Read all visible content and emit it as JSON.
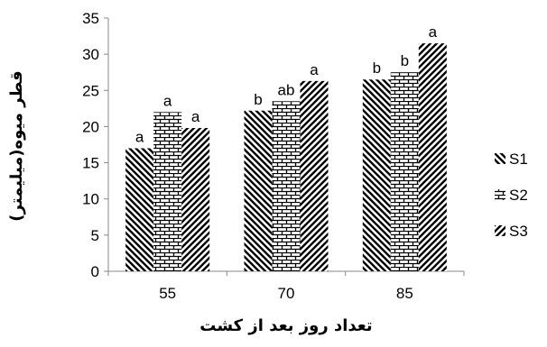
{
  "chart_data": {
    "type": "bar",
    "categories": [
      "55",
      "70",
      "85"
    ],
    "series": [
      {
        "name": "S1",
        "values": [
          17,
          22.2,
          26.5
        ],
        "letters": [
          "a",
          "b",
          "b"
        ],
        "pattern": "diag-back"
      },
      {
        "name": "S2",
        "values": [
          22,
          23.5,
          27.5
        ],
        "letters": [
          "a",
          "ab",
          "b"
        ],
        "pattern": "brick"
      },
      {
        "name": "S3",
        "values": [
          19.8,
          26.3,
          31.5
        ],
        "letters": [
          "a",
          "a",
          "a"
        ],
        "pattern": "diag-fwd"
      }
    ],
    "xlabel": "تعداد روز بعد از کشت",
    "ylabel": "قطر میوه(میلیمتر)",
    "ylim": [
      0,
      35
    ],
    "yticks": [
      "0",
      "5",
      "10",
      "15",
      "20",
      "25",
      "30",
      "35"
    ],
    "grid": false,
    "legend": "right"
  }
}
